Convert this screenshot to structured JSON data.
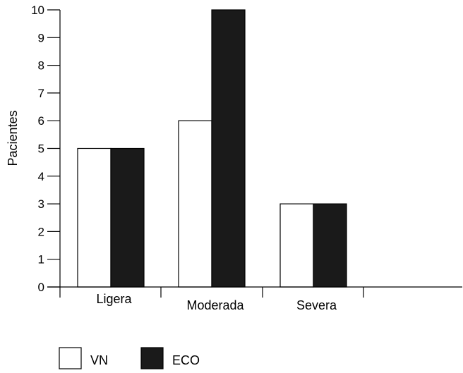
{
  "chart_data": {
    "type": "bar",
    "categories": [
      "Ligera",
      "Moderada",
      "Severa"
    ],
    "series": [
      {
        "name": "VN",
        "values": [
          5,
          6,
          3
        ],
        "color": "#ffffff"
      },
      {
        "name": "ECO",
        "values": [
          5,
          10,
          3
        ],
        "color": "#1a1a1a"
      }
    ],
    "xlabel": "",
    "ylabel": "Pacientes",
    "ylim": [
      0,
      10
    ],
    "yticks": [
      "0",
      "1",
      "2",
      "3",
      "4",
      "5",
      "6",
      "7",
      "8",
      "9",
      "10"
    ],
    "grid": false,
    "legend": "bottom-left"
  }
}
